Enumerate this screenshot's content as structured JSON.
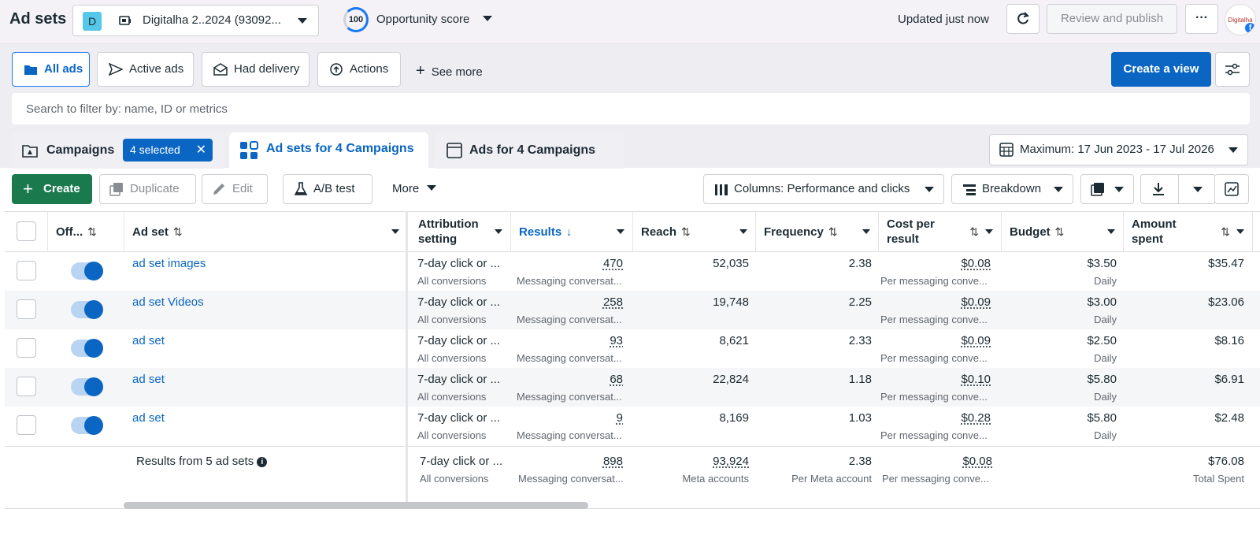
{
  "header": {
    "title": "Ad sets",
    "account_badge": "D",
    "account_name": "Digitalha 2..2024 (93092...",
    "score_value": "100",
    "score_label": "Opportunity score",
    "updated": "Updated just now",
    "review_label": "Review and publish",
    "more_label": "···",
    "avatar_text": "Digitalha"
  },
  "filters": {
    "all_ads": "All ads",
    "active_ads": "Active ads",
    "had_delivery": "Had delivery",
    "actions": "Actions",
    "see_more": "See more",
    "create_view": "Create a view"
  },
  "search": {
    "placeholder": "Search to filter by: name, ID or metrics"
  },
  "tabs": {
    "campaigns": "Campaigns",
    "selected_chip": "4 selected",
    "adsets": "Ad sets for 4 Campaigns",
    "ads": "Ads for 4 Campaigns",
    "date_range": "Maximum: 17 Jun 2023 - 17 Jul 2026"
  },
  "toolbar": {
    "create": "Create",
    "duplicate": "Duplicate",
    "edit": "Edit",
    "ab_test": "A/B test",
    "more": "More",
    "columns": "Columns: Performance and clicks",
    "breakdown": "Breakdown"
  },
  "columns": {
    "off": "Off...",
    "adset": "Ad set",
    "attribution_l1": "Attribution",
    "attribution_l2": "setting",
    "results": "Results",
    "reach": "Reach",
    "frequency": "Frequency",
    "cpr_l1": "Cost per",
    "cpr_l2": "result",
    "budget": "Budget",
    "amount_l1": "Amount",
    "amount_l2": "spent"
  },
  "rows": [
    {
      "name": "ad set images",
      "attribution": "7-day click or ...",
      "attribution_sub": "All conversions",
      "results": "470",
      "results_sub": "Messaging conversat...",
      "reach": "52,035",
      "frequency": "2.38",
      "cpr": "$0.08",
      "cpr_sub": "Per messaging conve...",
      "budget": "$3.50",
      "budget_sub": "Daily",
      "spent": "$35.47"
    },
    {
      "name": "ad set Videos",
      "attribution": "7-day click or ...",
      "attribution_sub": "All conversions",
      "results": "258",
      "results_sub": "Messaging conversat...",
      "reach": "19,748",
      "frequency": "2.25",
      "cpr": "$0.09",
      "cpr_sub": "Per messaging conve...",
      "budget": "$3.00",
      "budget_sub": "Daily",
      "spent": "$23.06"
    },
    {
      "name": "ad set",
      "attribution": "7-day click or ...",
      "attribution_sub": "All conversions",
      "results": "93",
      "results_sub": "Messaging conversat...",
      "reach": "8,621",
      "frequency": "2.33",
      "cpr": "$0.09",
      "cpr_sub": "Per messaging conve...",
      "budget": "$2.50",
      "budget_sub": "Daily",
      "spent": "$8.16"
    },
    {
      "name": "ad set",
      "attribution": "7-day click or ...",
      "attribution_sub": "All conversions",
      "results": "68",
      "results_sub": "Messaging conversat...",
      "reach": "22,824",
      "frequency": "1.18",
      "cpr": "$0.10",
      "cpr_sub": "Per messaging conve...",
      "budget": "$5.80",
      "budget_sub": "Daily",
      "spent": "$6.91"
    },
    {
      "name": "ad set",
      "attribution": "7-day click or ...",
      "attribution_sub": "All conversions",
      "results": "9",
      "results_sub": "Messaging conversat...",
      "reach": "8,169",
      "frequency": "1.03",
      "cpr": "$0.28",
      "cpr_sub": "Per messaging conve...",
      "budget": "$5.80",
      "budget_sub": "Daily",
      "spent": "$2.48"
    }
  ],
  "totals": {
    "label": "Results from 5 ad sets",
    "attribution": "7-day click or ...",
    "attribution_sub": "All conversions",
    "results": "898",
    "results_sub": "Messaging conversat...",
    "reach": "93,924",
    "reach_sub": "Meta accounts",
    "frequency": "2.38",
    "frequency_sub": "Per Meta account",
    "cpr": "$0.08",
    "cpr_sub": "Per messaging conve...",
    "spent": "$76.08",
    "spent_sub": "Total Spent"
  },
  "colors": {
    "accent": "#0a66c2",
    "create_green": "#1a7a4e"
  }
}
